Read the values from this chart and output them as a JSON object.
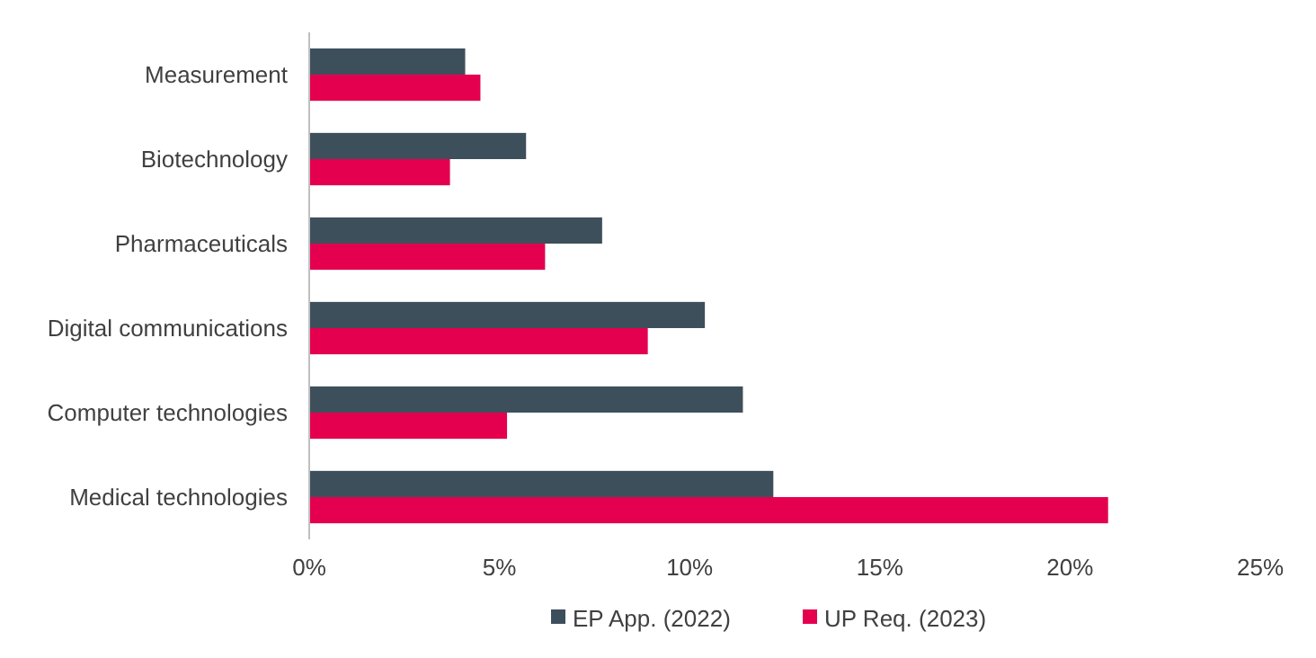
{
  "chart_data": {
    "type": "bar",
    "orientation": "horizontal",
    "categories": [
      "Measurement",
      "Biotechnology",
      "Pharmaceuticals",
      "Digital communications",
      "Computer technologies",
      "Medical technologies"
    ],
    "series": [
      {
        "name": "EP App. (2022)",
        "color": "#3e4f5c",
        "values": [
          4.1,
          5.7,
          7.7,
          10.4,
          11.4,
          12.2
        ]
      },
      {
        "name": "UP Req. (2023)",
        "color": "#e4004f",
        "values": [
          4.5,
          3.7,
          6.2,
          8.9,
          5.2,
          21.0
        ]
      }
    ],
    "xlim": [
      0,
      25
    ],
    "xticks": [
      {
        "value": 0,
        "label": "0%"
      },
      {
        "value": 5,
        "label": "5%"
      },
      {
        "value": 10,
        "label": "10%"
      },
      {
        "value": 15,
        "label": "15%"
      },
      {
        "value": 20,
        "label": "20%"
      },
      {
        "value": 25,
        "label": "25%"
      }
    ],
    "grid": false,
    "legend": "bottom"
  }
}
